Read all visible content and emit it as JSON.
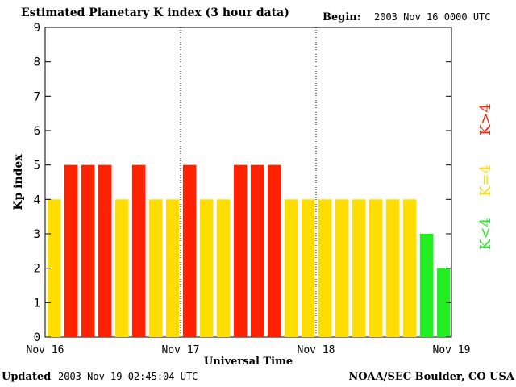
{
  "header": {
    "title": "Estimated Planetary K index (3 hour data)",
    "begin_label": "Begin:",
    "begin_value": "2003 Nov 16 0000 UTC"
  },
  "footer": {
    "updated_label": "Updated",
    "updated_value": "2003 Nov 19 02:45:04 UTC",
    "credit": "NOAA/SEC Boulder, CO USA"
  },
  "legend": [
    {
      "label": "K>4",
      "color": "#ff2200"
    },
    {
      "label": "K=4",
      "color": "#ffdd00"
    },
    {
      "label": "K<4",
      "color": "#22ee22"
    }
  ],
  "chart_data": {
    "type": "bar",
    "title": "Estimated Planetary K index (3 hour data)",
    "xlabel": "Universal Time",
    "ylabel": "Kp index",
    "ylim": [
      0,
      9
    ],
    "yticks": [
      0,
      1,
      2,
      3,
      4,
      5,
      6,
      7,
      8,
      9
    ],
    "xticks": [
      "Nov 16",
      "Nov 17",
      "Nov 18",
      "Nov 19"
    ],
    "bars_per_day": 8,
    "values": [
      4,
      5,
      5,
      5,
      4,
      5,
      4,
      4,
      5,
      4,
      4,
      5,
      5,
      5,
      4,
      4,
      4,
      4,
      4,
      4,
      4,
      4,
      3,
      2
    ],
    "colors": {
      "gt4": "#ff2200",
      "eq4": "#ffdd00",
      "lt4": "#22ee22"
    }
  }
}
